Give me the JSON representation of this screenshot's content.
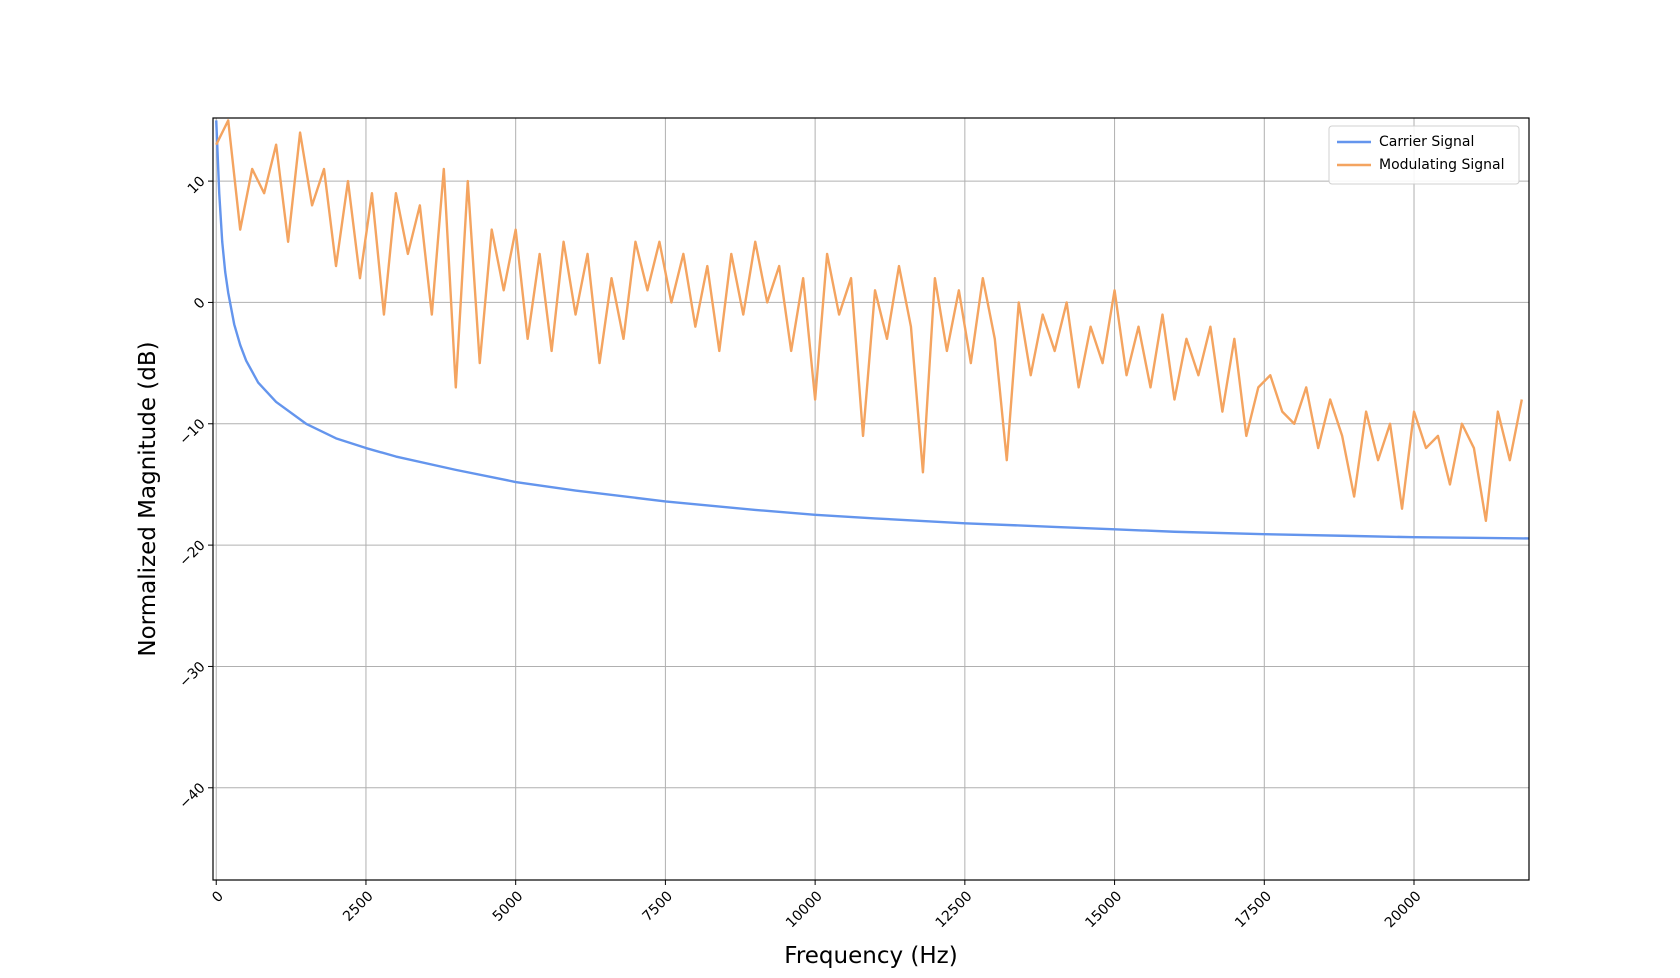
{
  "chart_data": {
    "type": "line",
    "xlabel": "Frequency (Hz)",
    "ylabel": "Normalized Magnitude (dB)",
    "xlim": [
      -54,
      21920
    ],
    "ylim": [
      -47.6,
      15.2
    ],
    "xticks": [
      0,
      2500,
      5000,
      7500,
      10000,
      12500,
      15000,
      17500,
      20000
    ],
    "yticks": [
      {
        "value": -40,
        "label": "−40"
      },
      {
        "value": -30,
        "label": "−30"
      },
      {
        "value": -20,
        "label": "−20"
      },
      {
        "value": -10,
        "label": "−10"
      },
      0,
      10
    ],
    "grid": true,
    "legend": "upper right",
    "series": [
      {
        "name": "Carrier Signal",
        "color": "#6495ed",
        "x": [
          0,
          50,
          100,
          150,
          200,
          300,
          400,
          500,
          700,
          1000,
          1500,
          2000,
          2500,
          3000,
          4000,
          5000,
          6000,
          7500,
          9000,
          10000,
          11000,
          12500,
          14000,
          15000,
          16000,
          17500,
          19000,
          20000,
          21000,
          21920
        ],
        "values": [
          15,
          9,
          5,
          2.5,
          0.8,
          -1.8,
          -3.5,
          -4.8,
          -6.6,
          -8.2,
          -10,
          -11.2,
          -12,
          -12.7,
          -13.8,
          -14.8,
          -15.5,
          -16.4,
          -17.1,
          -17.5,
          -17.8,
          -18.2,
          -18.5,
          -18.7,
          -18.9,
          -19.1,
          -19.25,
          -19.35,
          -19.4,
          -19.45
        ]
      },
      {
        "name": "Modulating Signal",
        "color": "#f4a460",
        "x": [
          0,
          200,
          400,
          600,
          800,
          1000,
          1200,
          1400,
          1600,
          1800,
          2000,
          2200,
          2400,
          2600,
          2800,
          3000,
          3200,
          3400,
          3600,
          3800,
          4000,
          4200,
          4400,
          4600,
          4800,
          5000,
          5200,
          5400,
          5600,
          5800,
          6000,
          6200,
          6400,
          6600,
          6800,
          7000,
          7200,
          7400,
          7600,
          7800,
          8000,
          8200,
          8400,
          8600,
          8800,
          9000,
          9200,
          9400,
          9600,
          9800,
          10000,
          10200,
          10400,
          10600,
          10800,
          11000,
          11200,
          11400,
          11600,
          11800,
          12000,
          12200,
          12400,
          12600,
          12800,
          13000,
          13200,
          13400,
          13600,
          13800,
          14000,
          14200,
          14400,
          14600,
          14800,
          15000,
          15200,
          15400,
          15600,
          15800,
          16000,
          16200,
          16400,
          16600,
          16800,
          17000,
          17200,
          17400,
          17600,
          17800,
          18000,
          18200,
          18400,
          18600,
          18800,
          19000,
          19200,
          19400,
          19600,
          19800,
          20000,
          20200,
          20400,
          20600,
          20800,
          21000,
          21200,
          21400,
          21600,
          21800
        ],
        "values": [
          13,
          15,
          6,
          11,
          9,
          13,
          5,
          14,
          8,
          11,
          3,
          10,
          2,
          9,
          -1,
          9,
          4,
          8,
          -1,
          11,
          -7,
          10,
          -5,
          6,
          1,
          6,
          -3,
          4,
          -4,
          5,
          -1,
          4,
          -5,
          2,
          -3,
          5,
          1,
          5,
          0,
          4,
          -2,
          3,
          -4,
          4,
          -1,
          5,
          0,
          3,
          -4,
          2,
          -8,
          4,
          -1,
          2,
          -11,
          1,
          -3,
          3,
          -2,
          -14,
          2,
          -4,
          1,
          -5,
          2,
          -3,
          -13,
          0,
          -6,
          -1,
          -4,
          0,
          -7,
          -2,
          -5,
          1,
          -6,
          -2,
          -7,
          -1,
          -8,
          -3,
          -6,
          -2,
          -9,
          -3,
          -11,
          -7,
          -6,
          -9,
          -10,
          -7,
          -12,
          -8,
          -11,
          -16,
          -9,
          -13,
          -10,
          -17,
          -9,
          -12,
          -11,
          -15,
          -10,
          -12,
          -18,
          -9,
          -13,
          -8
        ]
      }
    ]
  }
}
